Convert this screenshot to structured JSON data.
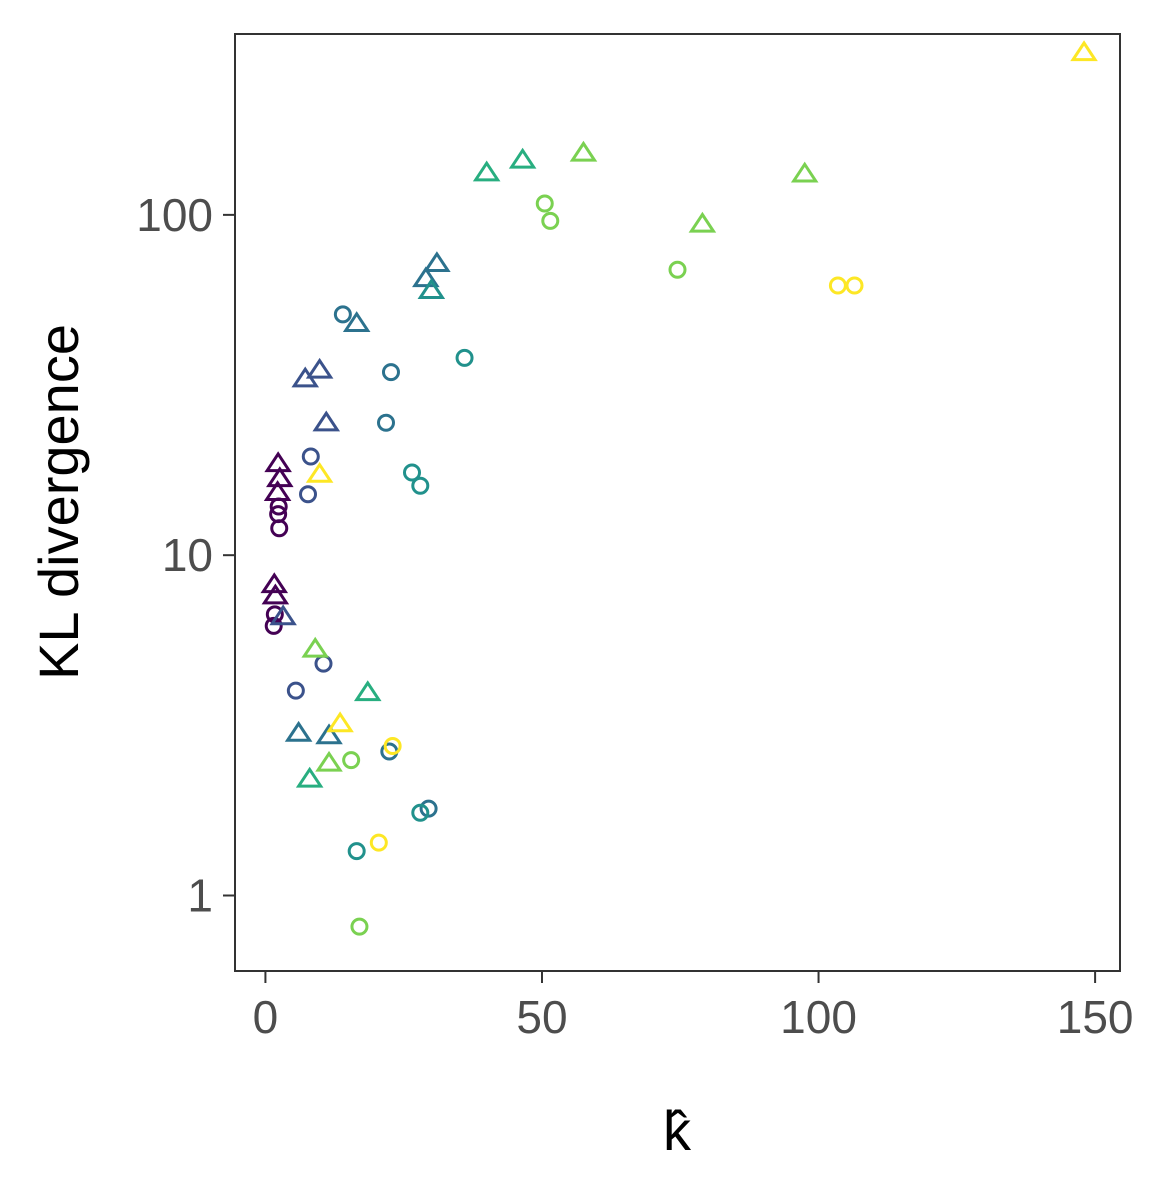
{
  "chart_data": {
    "type": "scatter",
    "title": "",
    "xlabel": "k̂",
    "ylabel": "KL divergence",
    "xlim": [
      -5.5,
      154.5
    ],
    "ylim": [
      0.6,
      340
    ],
    "y_scale": "log10",
    "x_ticks": [
      0,
      50,
      100,
      150
    ],
    "x_tick_labels": [
      "0",
      "50",
      "100",
      "150"
    ],
    "y_ticks": [
      1,
      10,
      100
    ],
    "y_tick_labels": [
      "1",
      "10",
      "100"
    ],
    "grid": false,
    "legend": "none",
    "colors": [
      "#440154",
      "#3b528b",
      "#2c728e",
      "#21918c",
      "#28ae80",
      "#7ad151",
      "#fde725"
    ],
    "points": [
      {
        "x": 1.5,
        "y": 6.2,
        "shape": "circle",
        "color": "#440154"
      },
      {
        "x": 1.7,
        "y": 6.7,
        "shape": "circle",
        "color": "#440154"
      },
      {
        "x": 2.5,
        "y": 12.0,
        "shape": "circle",
        "color": "#440154"
      },
      {
        "x": 2.3,
        "y": 13.2,
        "shape": "circle",
        "color": "#440154"
      },
      {
        "x": 2.4,
        "y": 13.9,
        "shape": "circle",
        "color": "#440154"
      },
      {
        "x": 1.6,
        "y": 8.2,
        "shape": "triangle",
        "color": "#440154"
      },
      {
        "x": 1.8,
        "y": 7.6,
        "shape": "triangle",
        "color": "#440154"
      },
      {
        "x": 2.2,
        "y": 15.3,
        "shape": "triangle",
        "color": "#440154"
      },
      {
        "x": 2.6,
        "y": 16.8,
        "shape": "triangle",
        "color": "#440154"
      },
      {
        "x": 2.3,
        "y": 18.6,
        "shape": "triangle",
        "color": "#440154"
      },
      {
        "x": 5.5,
        "y": 4.0,
        "shape": "circle",
        "color": "#3b528b"
      },
      {
        "x": 7.7,
        "y": 15.1,
        "shape": "circle",
        "color": "#3b528b"
      },
      {
        "x": 8.2,
        "y": 19.5,
        "shape": "circle",
        "color": "#3b528b"
      },
      {
        "x": 10.5,
        "y": 4.8,
        "shape": "circle",
        "color": "#3b528b"
      },
      {
        "x": 3.2,
        "y": 6.6,
        "shape": "triangle",
        "color": "#3b528b"
      },
      {
        "x": 7.2,
        "y": 33.0,
        "shape": "triangle",
        "color": "#3b528b"
      },
      {
        "x": 9.8,
        "y": 35.0,
        "shape": "triangle",
        "color": "#3b528b"
      },
      {
        "x": 11.0,
        "y": 24.5,
        "shape": "triangle",
        "color": "#3b528b"
      },
      {
        "x": 14.0,
        "y": 51.0,
        "shape": "circle",
        "color": "#2c728e"
      },
      {
        "x": 21.8,
        "y": 24.5,
        "shape": "circle",
        "color": "#2c728e"
      },
      {
        "x": 22.7,
        "y": 34.5,
        "shape": "circle",
        "color": "#2c728e"
      },
      {
        "x": 22.4,
        "y": 2.65,
        "shape": "circle",
        "color": "#2c728e"
      },
      {
        "x": 29.5,
        "y": 1.8,
        "shape": "circle",
        "color": "#2c728e"
      },
      {
        "x": 16.5,
        "y": 48.0,
        "shape": "triangle",
        "color": "#2c728e"
      },
      {
        "x": 29.0,
        "y": 65.0,
        "shape": "triangle",
        "color": "#2c728e"
      },
      {
        "x": 31.0,
        "y": 72.0,
        "shape": "triangle",
        "color": "#2c728e"
      },
      {
        "x": 6.0,
        "y": 3.0,
        "shape": "triangle",
        "color": "#2c728e"
      },
      {
        "x": 11.5,
        "y": 2.95,
        "shape": "triangle",
        "color": "#2c728e"
      },
      {
        "x": 26.5,
        "y": 17.5,
        "shape": "circle",
        "color": "#21918c"
      },
      {
        "x": 28.0,
        "y": 16.0,
        "shape": "circle",
        "color": "#21918c"
      },
      {
        "x": 28.0,
        "y": 1.75,
        "shape": "circle",
        "color": "#21918c"
      },
      {
        "x": 36.0,
        "y": 38.0,
        "shape": "circle",
        "color": "#21918c"
      },
      {
        "x": 16.5,
        "y": 1.35,
        "shape": "circle",
        "color": "#21918c"
      },
      {
        "x": 30.0,
        "y": 60.0,
        "shape": "triangle",
        "color": "#21918c"
      },
      {
        "x": 40.0,
        "y": 133.0,
        "shape": "triangle",
        "color": "#28ae80"
      },
      {
        "x": 46.5,
        "y": 145.0,
        "shape": "triangle",
        "color": "#28ae80"
      },
      {
        "x": 18.5,
        "y": 3.95,
        "shape": "triangle",
        "color": "#28ae80"
      },
      {
        "x": 8.0,
        "y": 2.2,
        "shape": "triangle",
        "color": "#28ae80"
      },
      {
        "x": 50.5,
        "y": 108.0,
        "shape": "circle",
        "color": "#7ad151"
      },
      {
        "x": 51.5,
        "y": 96.0,
        "shape": "circle",
        "color": "#7ad151"
      },
      {
        "x": 74.5,
        "y": 69.0,
        "shape": "circle",
        "color": "#7ad151"
      },
      {
        "x": 15.5,
        "y": 2.5,
        "shape": "circle",
        "color": "#7ad151"
      },
      {
        "x": 17.0,
        "y": 0.81,
        "shape": "circle",
        "color": "#7ad151"
      },
      {
        "x": 57.5,
        "y": 152.0,
        "shape": "triangle",
        "color": "#7ad151"
      },
      {
        "x": 79.0,
        "y": 94.0,
        "shape": "triangle",
        "color": "#7ad151"
      },
      {
        "x": 97.5,
        "y": 132.0,
        "shape": "triangle",
        "color": "#7ad151"
      },
      {
        "x": 9.0,
        "y": 5.3,
        "shape": "triangle",
        "color": "#7ad151"
      },
      {
        "x": 11.5,
        "y": 2.45,
        "shape": "triangle",
        "color": "#7ad151"
      },
      {
        "x": 103.5,
        "y": 62.0,
        "shape": "circle",
        "color": "#fde725"
      },
      {
        "x": 106.5,
        "y": 62.0,
        "shape": "circle",
        "color": "#fde725"
      },
      {
        "x": 20.5,
        "y": 1.43,
        "shape": "circle",
        "color": "#fde725"
      },
      {
        "x": 23.0,
        "y": 2.75,
        "shape": "circle",
        "color": "#fde725"
      },
      {
        "x": 148.0,
        "y": 300.0,
        "shape": "triangle",
        "color": "#fde725"
      },
      {
        "x": 9.8,
        "y": 17.3,
        "shape": "triangle",
        "color": "#fde725"
      },
      {
        "x": 13.5,
        "y": 3.2,
        "shape": "triangle",
        "color": "#fde725"
      }
    ]
  }
}
